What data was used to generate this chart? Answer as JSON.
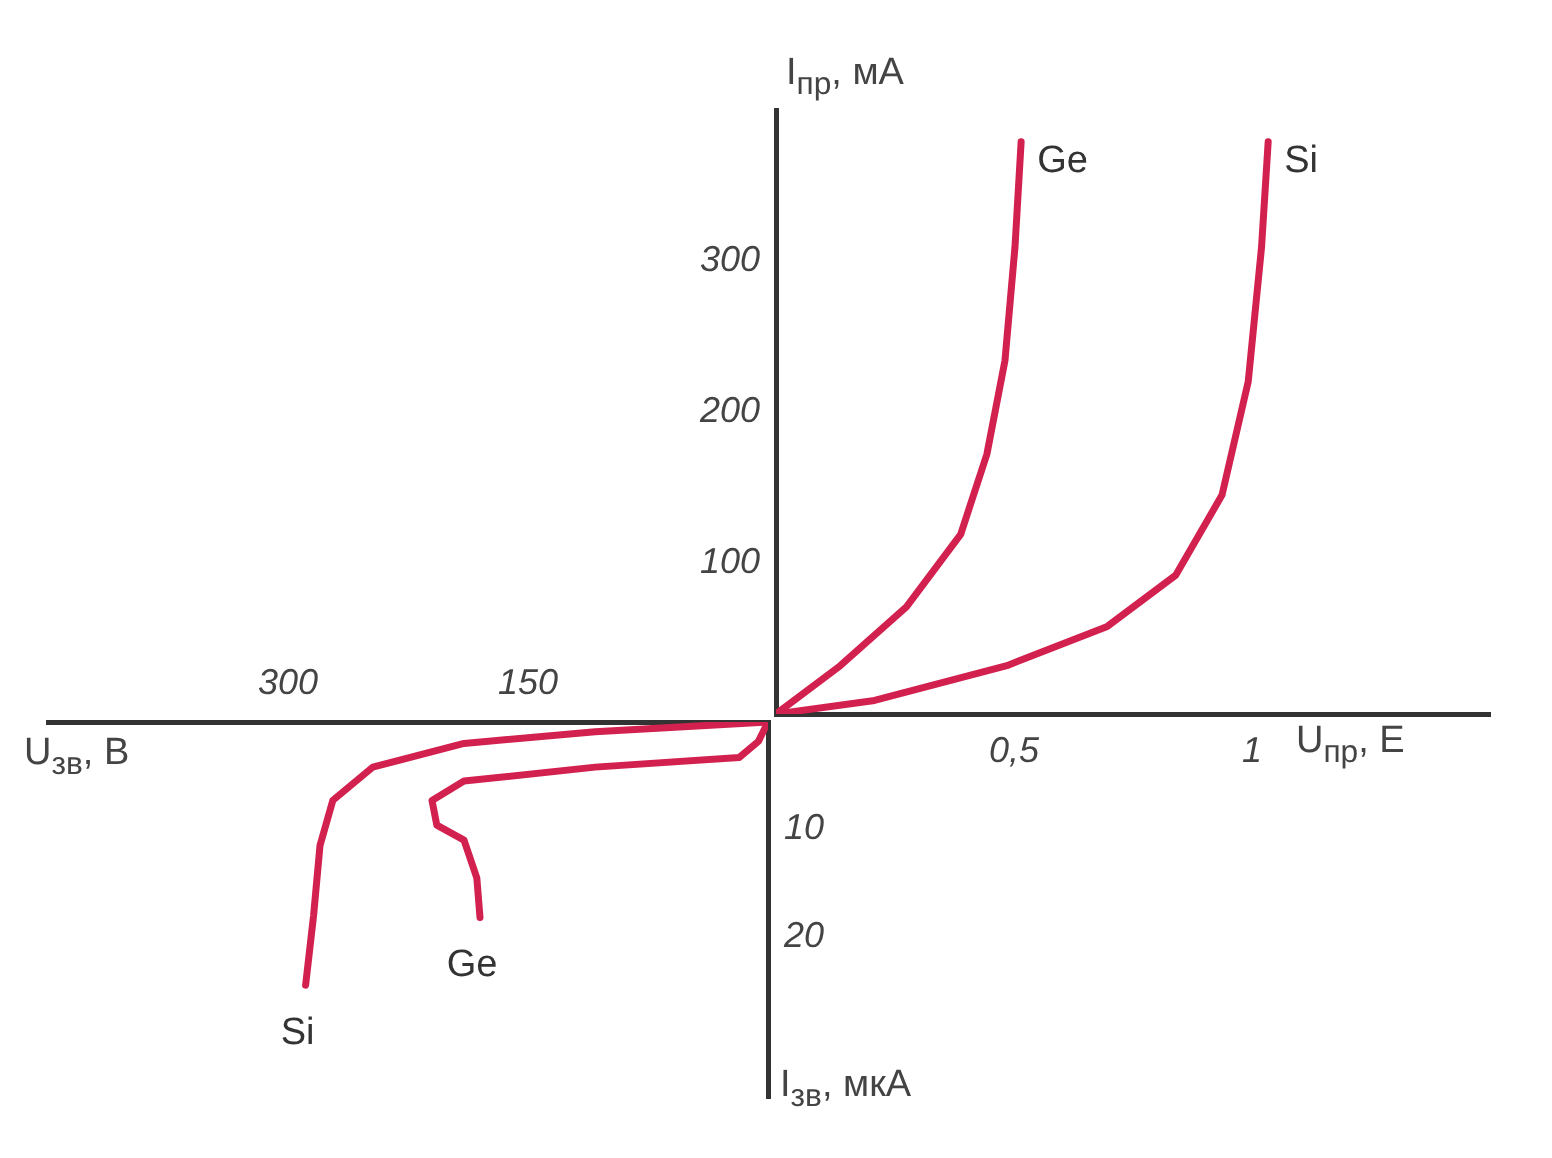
{
  "chart_data": [
    {
      "type": "line",
      "xlabel": "U$_{пр}$, Е",
      "ylabel": "I$_{пр}$, мА",
      "xlim": [
        0,
        1.5
      ],
      "ylim": [
        0,
        400
      ],
      "xticks": [
        {
          "value": 0.5,
          "label": "0,5"
        },
        1
      ],
      "yticks": [
        100,
        200,
        300
      ],
      "marker": "none",
      "series": [
        {
          "name": "Ge",
          "color": "#d3214f",
          "x": [
            0,
            0.135,
            0.274,
            0.388,
            0.443,
            0.481,
            0.502,
            0.515
          ],
          "values": [
            0,
            32,
            71,
            119,
            172,
            234,
            309,
            379
          ]
        },
        {
          "name": "Si",
          "color": "#d3214f",
          "x": [
            0,
            0.207,
            0.485,
            0.696,
            0.84,
            0.937,
            0.992,
            1.02,
            1.034
          ],
          "values": [
            0,
            9,
            32,
            58,
            92,
            145,
            220,
            309,
            379
          ]
        }
      ]
    },
    {
      "type": "line",
      "xlabel": "U$_{зв}$, В",
      "ylabel": "I$_{зв}$, мкА",
      "xlim": [
        450,
        0
      ],
      "ylim": [
        35,
        0
      ],
      "xticks": [
        300,
        150
      ],
      "yticks": [
        10,
        20
      ],
      "marker": "none",
      "series": [
        {
          "name": "Si",
          "color": "#d3214f",
          "x": [
            0,
            108,
            190,
            247,
            272,
            280,
            284,
            289
          ],
          "values": [
            0,
            0.9,
            2,
            4.2,
            7.3,
            11.5,
            18,
            24.5
          ]
        },
        {
          "name": "Ge",
          "color": "#d3214f",
          "x": [
            0,
            6,
            18,
            108,
            190,
            210,
            207,
            190,
            182,
            180
          ],
          "values": [
            0,
            1.8,
            3.3,
            4.2,
            5.5,
            7.3,
            9.6,
            11,
            14.5,
            18.2
          ]
        }
      ]
    }
  ]
}
